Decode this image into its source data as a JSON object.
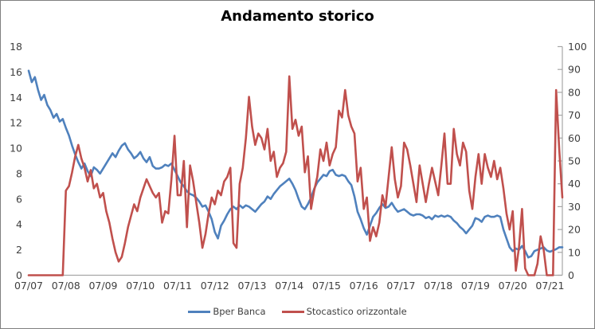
{
  "chart_data": {
    "type": "line",
    "title": "Andamento storico",
    "legend_position": "bottom",
    "grid": false,
    "background": "#FFFFFF",
    "border_color": "#808080",
    "colors": {
      "axis_line": "#A6A6A6",
      "tick_text": "#3F3F3F",
      "title_text": "#000000"
    },
    "x_axis": {
      "labels": [
        "07/07",
        "07/08",
        "07/09",
        "07/10",
        "07/11",
        "07/12",
        "07/13",
        "07/14",
        "07/15",
        "07/16",
        "07/17",
        "07/18",
        "07/19",
        "07/20",
        "07/21"
      ]
    },
    "y_axis_left": {
      "min": 0,
      "max": 18,
      "ticks": [
        0,
        2,
        4,
        6,
        8,
        10,
        12,
        14,
        16,
        18
      ]
    },
    "y_axis_right": {
      "min": 0,
      "max": 100,
      "ticks": [
        0,
        10,
        20,
        30,
        40,
        50,
        60,
        70,
        80,
        90,
        100
      ]
    },
    "series": [
      {
        "name": "Bper Banca",
        "axis": "left",
        "color": "#4F81BD",
        "values": [
          16.1,
          15.2,
          15.6,
          14.6,
          13.8,
          14.2,
          13.4,
          13.0,
          12.4,
          12.7,
          12.1,
          12.3,
          11.6,
          11.0,
          10.2,
          9.5,
          8.9,
          8.4,
          8.8,
          8.2,
          7.8,
          8.5,
          8.3,
          8.0,
          8.4,
          8.8,
          9.2,
          9.6,
          9.3,
          9.8,
          10.2,
          10.4,
          9.9,
          9.6,
          9.2,
          9.4,
          9.7,
          9.2,
          8.9,
          9.3,
          8.6,
          8.4,
          8.4,
          8.5,
          8.7,
          8.6,
          8.8,
          8.3,
          7.8,
          7.3,
          7.0,
          6.6,
          6.4,
          6.3,
          6.1,
          5.8,
          5.4,
          5.5,
          5.0,
          4.4,
          3.4,
          2.9,
          3.9,
          4.3,
          4.8,
          5.2,
          5.4,
          5.2,
          5.5,
          5.3,
          5.5,
          5.4,
          5.2,
          5.0,
          5.3,
          5.6,
          5.8,
          6.2,
          6.0,
          6.4,
          6.7,
          7.0,
          7.2,
          7.4,
          7.6,
          7.2,
          6.7,
          6.0,
          5.4,
          5.2,
          5.6,
          6.1,
          6.8,
          7.3,
          7.6,
          7.9,
          7.8,
          8.2,
          8.3,
          7.9,
          7.8,
          7.9,
          7.8,
          7.4,
          7.1,
          6.2,
          5.0,
          4.4,
          3.7,
          3.2,
          3.9,
          4.6,
          4.9,
          5.3,
          5.6,
          5.3,
          5.4,
          5.7,
          5.3,
          5.0,
          5.1,
          5.2,
          5.0,
          4.8,
          4.7,
          4.8,
          4.8,
          4.7,
          4.5,
          4.6,
          4.4,
          4.7,
          4.6,
          4.7,
          4.6,
          4.7,
          4.6,
          4.3,
          4.1,
          3.8,
          3.6,
          3.3,
          3.6,
          3.9,
          4.5,
          4.4,
          4.2,
          4.6,
          4.7,
          4.6,
          4.6,
          4.7,
          4.6,
          3.6,
          2.9,
          2.2,
          1.9,
          2.1,
          2.0,
          2.3,
          1.9,
          1.4,
          1.5,
          1.9,
          2.0,
          2.1,
          2.2,
          1.95,
          1.85,
          1.95,
          2.05,
          2.2,
          2.2
        ]
      },
      {
        "name": "Stocastico orizzontale",
        "axis": "right",
        "color": "#C0504D",
        "values": [
          0,
          0,
          0,
          0,
          0,
          0,
          0,
          0,
          0,
          0,
          0,
          0,
          37,
          39,
          45,
          52,
          57,
          51,
          47,
          41,
          46,
          38,
          40,
          34,
          36,
          28,
          23,
          16,
          10,
          6,
          8,
          14,
          21,
          26,
          31,
          28,
          34,
          38,
          42,
          39,
          36,
          34,
          36,
          23,
          28,
          27,
          42,
          61,
          35,
          35,
          50,
          21,
          48,
          41,
          32,
          23,
          12,
          18,
          27,
          34,
          31,
          37,
          35,
          41,
          43,
          47,
          14,
          12,
          40,
          47,
          60,
          78,
          65,
          57,
          62,
          60,
          55,
          64,
          50,
          54,
          43,
          47,
          49,
          54,
          87,
          64,
          68,
          61,
          65,
          45,
          52,
          29,
          37,
          43,
          55,
          50,
          58,
          48,
          53,
          56,
          72,
          69,
          81,
          70,
          65,
          62,
          41,
          47,
          29,
          34,
          15,
          21,
          17,
          23,
          35,
          30,
          43,
          56,
          42,
          34,
          39,
          58,
          55,
          48,
          40,
          32,
          48,
          40,
          32,
          40,
          47,
          41,
          35,
          48,
          62,
          40,
          40,
          64,
          53,
          48,
          58,
          54,
          37,
          29,
          43,
          53,
          40,
          53,
          47,
          43,
          50,
          42,
          47,
          38,
          27,
          20,
          28,
          2,
          12,
          29,
          3,
          0,
          0,
          0,
          5,
          17,
          11,
          0,
          0,
          0,
          81,
          55,
          34
        ]
      }
    ]
  }
}
